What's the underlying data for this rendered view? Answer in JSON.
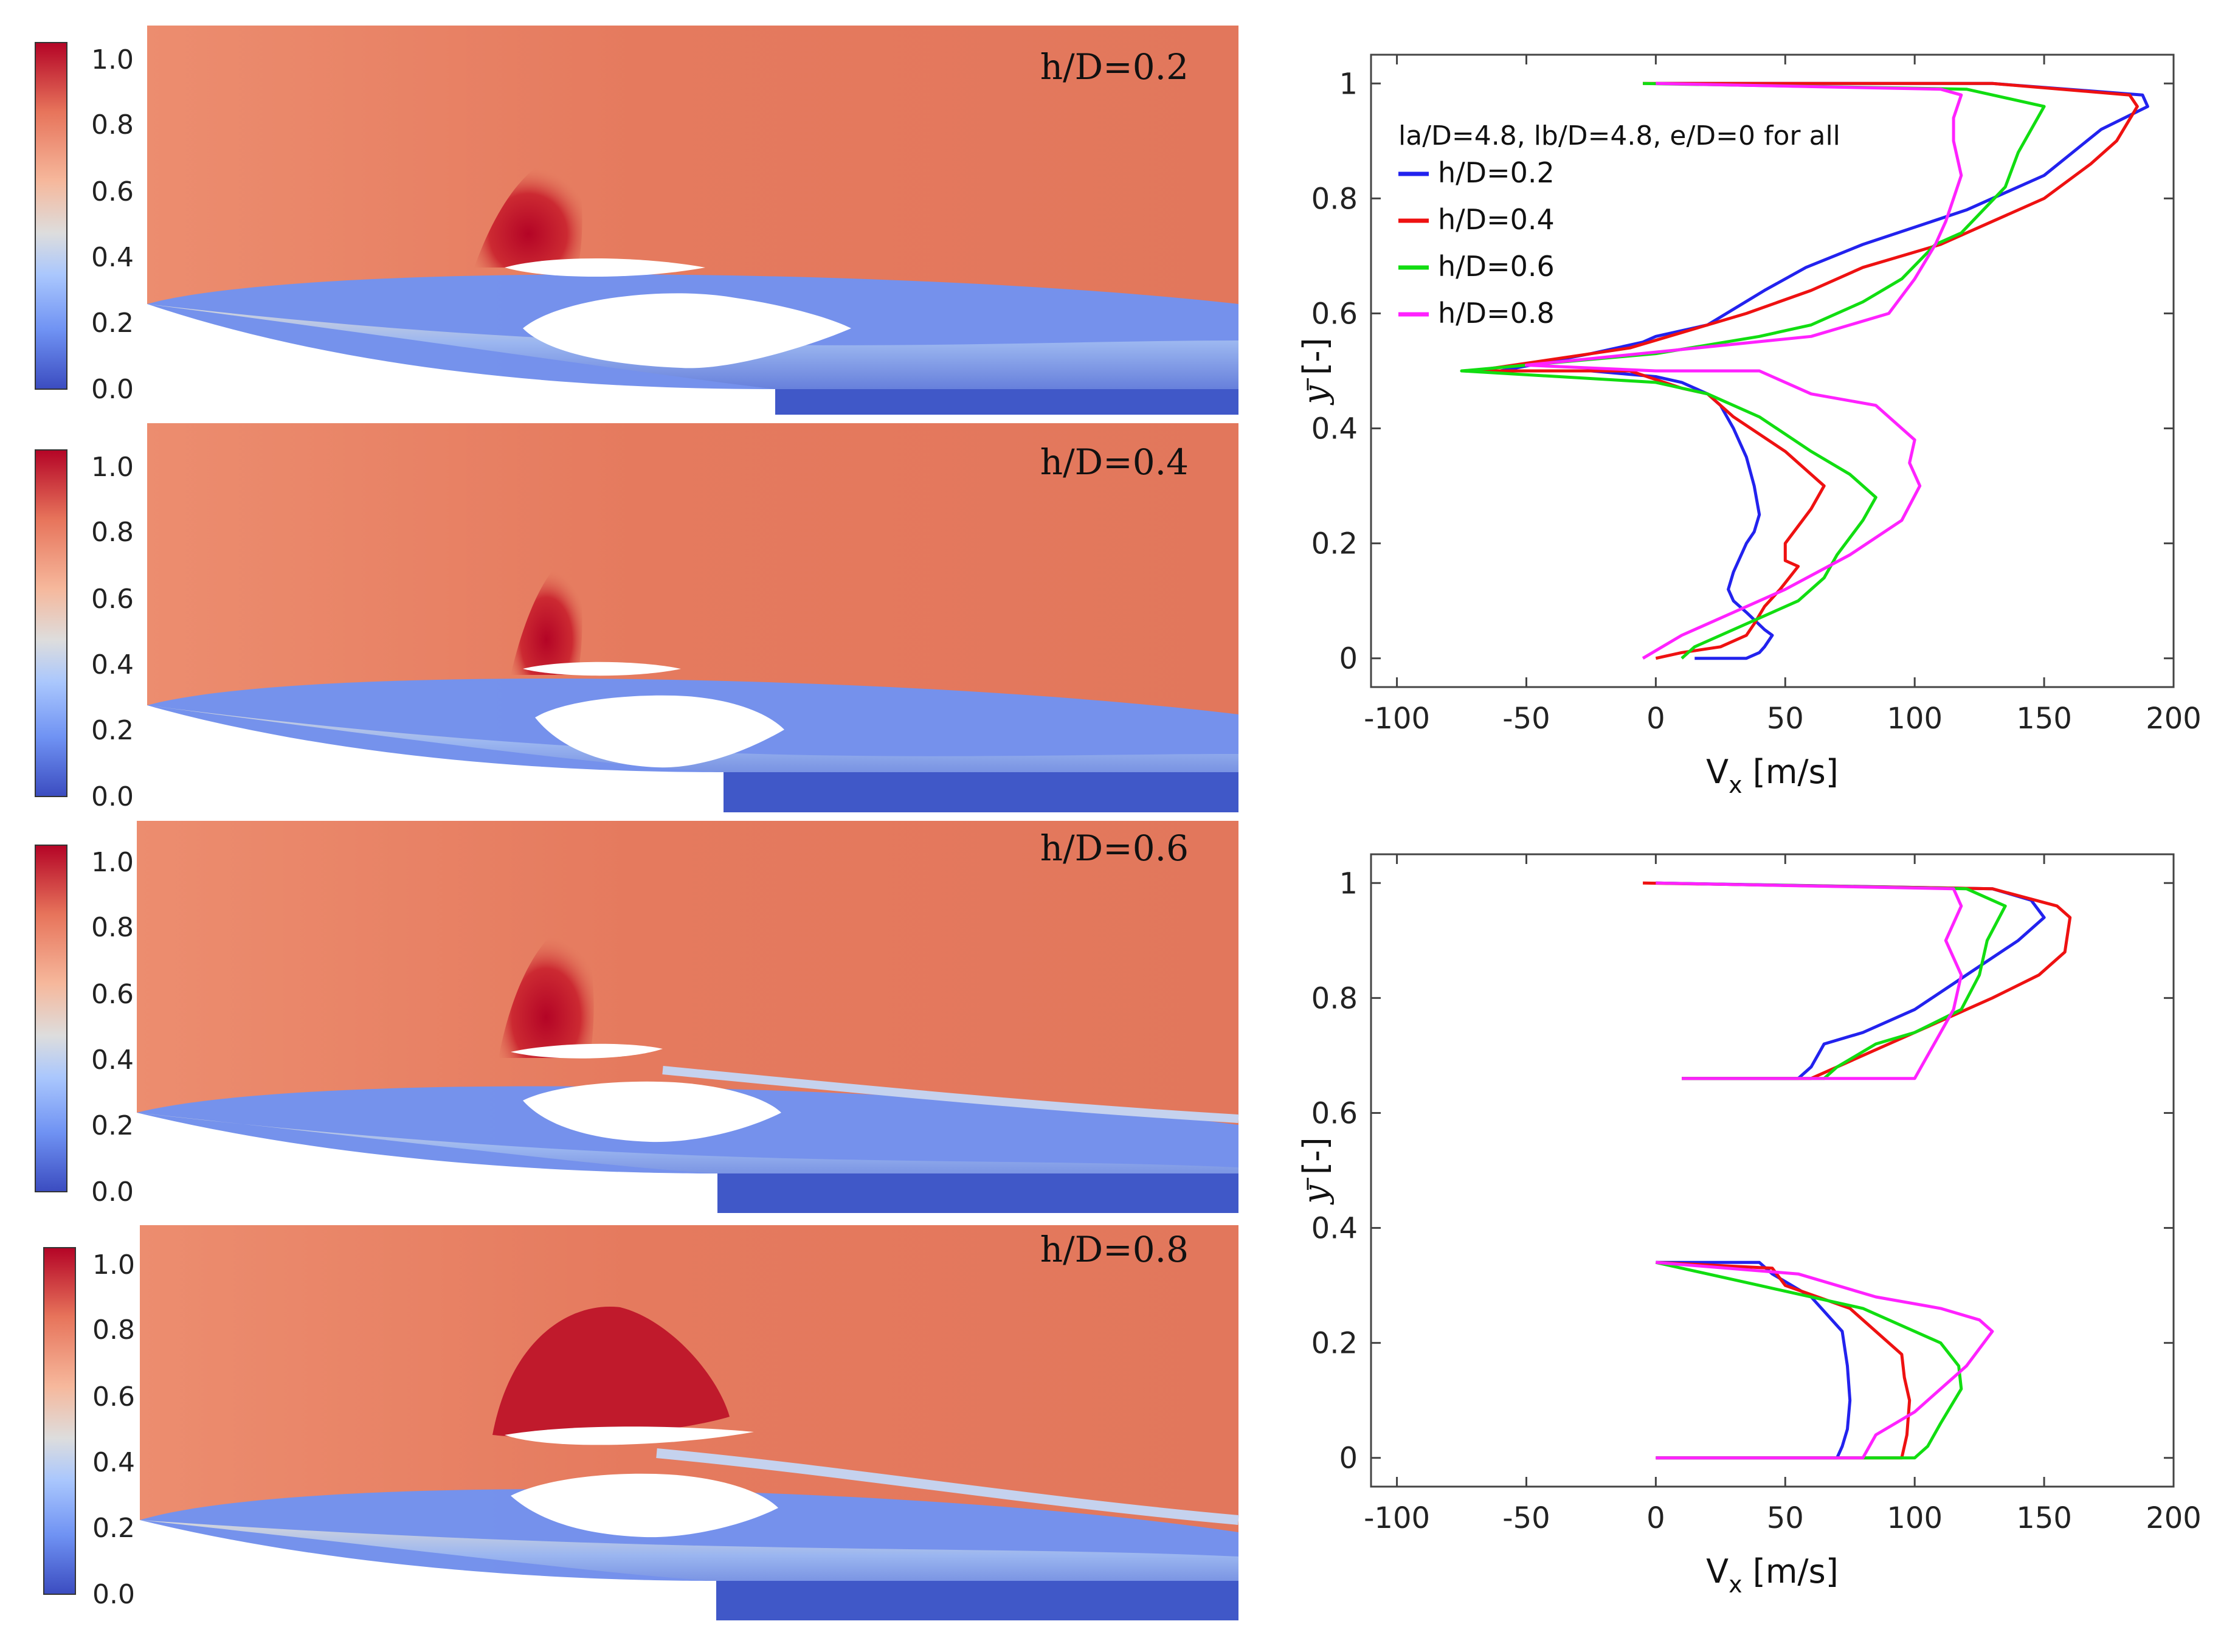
{
  "colors": {
    "colormap": [
      "#3b4cc0",
      "#6f92f3",
      "#aac7fd",
      "#dddddd",
      "#f6b89c",
      "#e7745b",
      "#b40426"
    ],
    "h02": "#2222ee",
    "h04": "#ee1111",
    "h06": "#11dd11",
    "h08": "#ff22ff"
  },
  "contours": {
    "colorbar_ticks": [
      "1.0",
      "0.8",
      "0.6",
      "0.4",
      "0.2",
      "0.0"
    ],
    "panels": [
      {
        "label": "h/D=0.2"
      },
      {
        "label": "h/D=0.4"
      },
      {
        "label": "h/D=0.6"
      },
      {
        "label": "h/D=0.8"
      }
    ]
  },
  "chart_data": [
    {
      "type": "line",
      "title": "",
      "legend_title": "la/D=4.8, lb/D=4.8, e/D=0 for all",
      "xlabel_main": "V",
      "xlabel_sub": "x",
      "xlabel_unit": "[m/s]",
      "ylabel_symbol": "y",
      "ylabel_unit": "[-]",
      "xlim": [
        -110,
        200
      ],
      "ylim": [
        -0.05,
        1.05
      ],
      "xticks": [
        -100,
        -50,
        0,
        50,
        100,
        150,
        200
      ],
      "yticks": [
        0,
        0.2,
        0.4,
        0.6,
        0.8,
        1
      ],
      "xtick_labels": [
        "-100",
        "-50",
        "0",
        "50",
        "100",
        "150",
        "200"
      ],
      "ytick_labels": [
        "0",
        "0.2",
        "0.4",
        "0.6",
        "0.8",
        "1"
      ],
      "series": [
        {
          "name": "h/D=0.2",
          "x": [
            0,
            130,
            188,
            190,
            172,
            150,
            120,
            80,
            58,
            42,
            20,
            0,
            -5,
            -25,
            -60,
            -25,
            0,
            10,
            20,
            25,
            30,
            35,
            38,
            40,
            38,
            35,
            33,
            30,
            28,
            30,
            35,
            42,
            45,
            42,
            40,
            35,
            30,
            15
          ],
          "y": [
            1,
            1,
            0.98,
            0.96,
            0.92,
            0.84,
            0.78,
            0.72,
            0.68,
            0.64,
            0.58,
            0.56,
            0.55,
            0.53,
            0.5,
            0.5,
            0.49,
            0.48,
            0.46,
            0.44,
            0.4,
            0.35,
            0.3,
            0.25,
            0.22,
            0.2,
            0.18,
            0.15,
            0.12,
            0.1,
            0.08,
            0.05,
            0.04,
            0.02,
            0.01,
            0,
            0,
            0
          ]
        },
        {
          "name": "h/D=0.4",
          "x": [
            -5,
            130,
            183,
            186,
            178,
            168,
            150,
            130,
            110,
            80,
            60,
            35,
            -10,
            -70,
            -10,
            10,
            20,
            30,
            50,
            65,
            60,
            50,
            50,
            55,
            48,
            42,
            38,
            35,
            25,
            10,
            0
          ],
          "y": [
            1,
            1,
            0.98,
            0.96,
            0.9,
            0.86,
            0.8,
            0.76,
            0.72,
            0.68,
            0.64,
            0.6,
            0.54,
            0.5,
            0.5,
            0.47,
            0.46,
            0.42,
            0.36,
            0.3,
            0.26,
            0.2,
            0.17,
            0.16,
            0.12,
            0.09,
            0.06,
            0.04,
            0.02,
            0.01,
            0
          ]
        },
        {
          "name": "h/D=0.6",
          "x": [
            -5,
            120,
            150,
            145,
            140,
            135,
            118,
            108,
            95,
            80,
            60,
            40,
            0,
            -75,
            0,
            20,
            40,
            60,
            75,
            85,
            80,
            70,
            65,
            55,
            45,
            35,
            15,
            10
          ],
          "y": [
            1,
            0.99,
            0.96,
            0.92,
            0.88,
            0.82,
            0.74,
            0.72,
            0.66,
            0.62,
            0.58,
            0.56,
            0.53,
            0.5,
            0.48,
            0.46,
            0.42,
            0.36,
            0.32,
            0.28,
            0.24,
            0.18,
            0.14,
            0.1,
            0.08,
            0.06,
            0.02,
            0
          ]
        },
        {
          "name": "h/D=0.8",
          "x": [
            0,
            110,
            118,
            115,
            115,
            118,
            115,
            112,
            108,
            100,
            90,
            60,
            -50,
            0,
            40,
            60,
            85,
            100,
            98,
            102,
            95,
            75,
            50,
            30,
            10,
            -5
          ],
          "y": [
            1,
            0.99,
            0.98,
            0.94,
            0.9,
            0.84,
            0.8,
            0.76,
            0.72,
            0.66,
            0.6,
            0.56,
            0.51,
            0.5,
            0.5,
            0.46,
            0.44,
            0.38,
            0.34,
            0.3,
            0.24,
            0.18,
            0.12,
            0.08,
            0.04,
            0
          ]
        }
      ]
    },
    {
      "type": "line",
      "title": "",
      "xlabel_main": "V",
      "xlabel_sub": "x",
      "xlabel_unit": "[m/s]",
      "ylabel_symbol": "y",
      "ylabel_unit": "[-]",
      "xlim": [
        -110,
        200
      ],
      "ylim": [
        -0.05,
        1.05
      ],
      "xticks": [
        -100,
        -50,
        0,
        50,
        100,
        150,
        200
      ],
      "yticks": [
        0,
        0.2,
        0.4,
        0.6,
        0.8,
        1
      ],
      "xtick_labels": [
        "-100",
        "-50",
        "0",
        "50",
        "100",
        "150",
        "200"
      ],
      "ytick_labels": [
        "0",
        "0.2",
        "0.4",
        "0.6",
        "0.8",
        "1"
      ],
      "series": [
        {
          "name": "h/D=0.2",
          "x": [
            0,
            130,
            145,
            150,
            140,
            120,
            100,
            80,
            65,
            60,
            55,
            10,
            null,
            0,
            40,
            45,
            60,
            72,
            74,
            75,
            74,
            72,
            70,
            0
          ],
          "y": [
            1,
            0.99,
            0.97,
            0.94,
            0.9,
            0.84,
            0.78,
            0.74,
            0.72,
            0.68,
            0.66,
            0.66,
            null,
            0.34,
            0.34,
            0.32,
            0.28,
            0.22,
            0.16,
            0.1,
            0.05,
            0.02,
            0,
            0
          ]
        },
        {
          "name": "h/D=0.4",
          "x": [
            -5,
            130,
            155,
            160,
            158,
            148,
            130,
            110,
            90,
            70,
            60,
            10,
            null,
            0,
            45,
            50,
            75,
            95,
            96,
            98,
            97,
            95,
            0
          ],
          "y": [
            1,
            0.99,
            0.96,
            0.94,
            0.88,
            0.84,
            0.8,
            0.76,
            0.72,
            0.68,
            0.66,
            0.66,
            null,
            0.34,
            0.33,
            0.3,
            0.26,
            0.18,
            0.14,
            0.1,
            0.04,
            0,
            0
          ]
        },
        {
          "name": "h/D=0.6",
          "x": [
            0,
            120,
            135,
            128,
            125,
            118,
            100,
            85,
            70,
            65,
            10,
            null,
            0,
            40,
            80,
            110,
            117,
            118,
            110,
            105,
            100,
            0
          ],
          "y": [
            1,
            0.99,
            0.96,
            0.9,
            0.84,
            0.78,
            0.74,
            0.72,
            0.68,
            0.66,
            0.66,
            null,
            0.34,
            0.3,
            0.26,
            0.2,
            0.16,
            0.12,
            0.06,
            0.02,
            0,
            0
          ]
        },
        {
          "name": "h/D=0.8",
          "x": [
            0,
            115,
            118,
            112,
            118,
            115,
            110,
            105,
            100,
            10,
            null,
            0,
            55,
            85,
            110,
            125,
            130,
            120,
            100,
            85,
            80,
            0
          ],
          "y": [
            1,
            0.99,
            0.96,
            0.9,
            0.84,
            0.78,
            0.74,
            0.7,
            0.66,
            0.66,
            null,
            0.34,
            0.32,
            0.28,
            0.26,
            0.24,
            0.22,
            0.16,
            0.08,
            0.04,
            0,
            0
          ]
        }
      ]
    }
  ]
}
